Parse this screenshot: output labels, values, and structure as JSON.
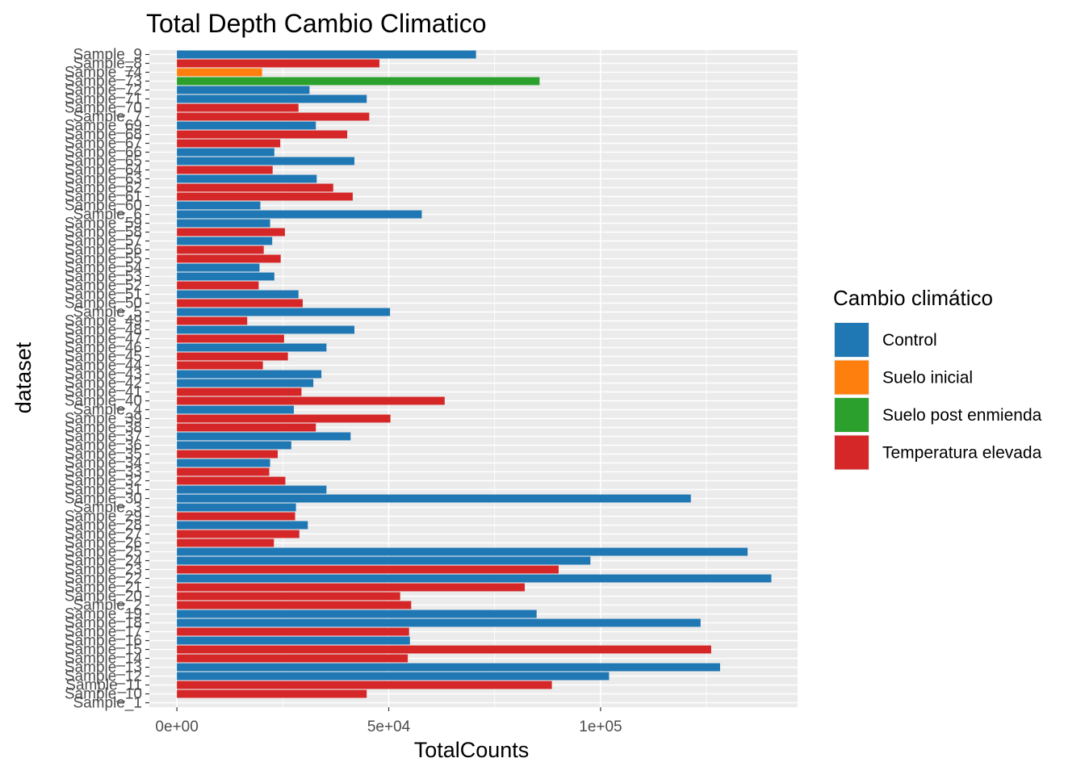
{
  "chart_data": {
    "type": "bar",
    "orientation": "horizontal",
    "title": "Total Depth Cambio Climatico",
    "xlabel": "TotalCounts",
    "ylabel": "dataset",
    "xlim": [
      -6500,
      146500
    ],
    "x_ticks": [
      0,
      50000,
      100000
    ],
    "x_tick_labels": [
      "0e+00",
      "5e+04",
      "1e+05"
    ],
    "grid": true,
    "legend": {
      "title": "Cambio climático",
      "position": "right",
      "entries": [
        {
          "name": "Control",
          "color": "#1f77b4"
        },
        {
          "name": "Suelo inicial",
          "color": "#ff7f0e"
        },
        {
          "name": "Suelo post enmienda",
          "color": "#2ca02c"
        },
        {
          "name": "Temperatura elevada",
          "color": "#d62728"
        }
      ]
    },
    "bars": [
      {
        "label": "Sample_9",
        "value": 70600,
        "group": "Control"
      },
      {
        "label": "Sample_8",
        "value": 47800,
        "group": "Temperatura elevada"
      },
      {
        "label": "Sample_74",
        "value": 20100,
        "group": "Suelo inicial"
      },
      {
        "label": "Sample_73",
        "value": 85600,
        "group": "Suelo post enmienda"
      },
      {
        "label": "Sample_72",
        "value": 31300,
        "group": "Control"
      },
      {
        "label": "Sample_71",
        "value": 44800,
        "group": "Control"
      },
      {
        "label": "Sample_70",
        "value": 28700,
        "group": "Temperatura elevada"
      },
      {
        "label": "Sample_7",
        "value": 45400,
        "group": "Temperatura elevada"
      },
      {
        "label": "Sample_69",
        "value": 32800,
        "group": "Control"
      },
      {
        "label": "Sample_68",
        "value": 40200,
        "group": "Temperatura elevada"
      },
      {
        "label": "Sample_67",
        "value": 24400,
        "group": "Temperatura elevada"
      },
      {
        "label": "Sample_66",
        "value": 23000,
        "group": "Control"
      },
      {
        "label": "Sample_65",
        "value": 41900,
        "group": "Control"
      },
      {
        "label": "Sample_64",
        "value": 22600,
        "group": "Temperatura elevada"
      },
      {
        "label": "Sample_63",
        "value": 33000,
        "group": "Control"
      },
      {
        "label": "Sample_62",
        "value": 36900,
        "group": "Temperatura elevada"
      },
      {
        "label": "Sample_61",
        "value": 41500,
        "group": "Temperatura elevada"
      },
      {
        "label": "Sample_60",
        "value": 19700,
        "group": "Control"
      },
      {
        "label": "Sample_6",
        "value": 57800,
        "group": "Control"
      },
      {
        "label": "Sample_59",
        "value": 22000,
        "group": "Control"
      },
      {
        "label": "Sample_58",
        "value": 25500,
        "group": "Temperatura elevada"
      },
      {
        "label": "Sample_57",
        "value": 22500,
        "group": "Control"
      },
      {
        "label": "Sample_56",
        "value": 20500,
        "group": "Temperatura elevada"
      },
      {
        "label": "Sample_55",
        "value": 24500,
        "group": "Temperatura elevada"
      },
      {
        "label": "Sample_54",
        "value": 19500,
        "group": "Control"
      },
      {
        "label": "Sample_53",
        "value": 23000,
        "group": "Control"
      },
      {
        "label": "Sample_52",
        "value": 19300,
        "group": "Temperatura elevada"
      },
      {
        "label": "Sample_51",
        "value": 28700,
        "group": "Control"
      },
      {
        "label": "Sample_50",
        "value": 29700,
        "group": "Temperatura elevada"
      },
      {
        "label": "Sample_5",
        "value": 50300,
        "group": "Control"
      },
      {
        "label": "Sample_49",
        "value": 16600,
        "group": "Temperatura elevada"
      },
      {
        "label": "Sample_48",
        "value": 41900,
        "group": "Control"
      },
      {
        "label": "Sample_47",
        "value": 25300,
        "group": "Temperatura elevada"
      },
      {
        "label": "Sample_46",
        "value": 35300,
        "group": "Control"
      },
      {
        "label": "Sample_45",
        "value": 26200,
        "group": "Temperatura elevada"
      },
      {
        "label": "Sample_44",
        "value": 20300,
        "group": "Temperatura elevada"
      },
      {
        "label": "Sample_43",
        "value": 34100,
        "group": "Control"
      },
      {
        "label": "Sample_42",
        "value": 32200,
        "group": "Control"
      },
      {
        "label": "Sample_41",
        "value": 29400,
        "group": "Temperatura elevada"
      },
      {
        "label": "Sample_40",
        "value": 63200,
        "group": "Temperatura elevada"
      },
      {
        "label": "Sample_4",
        "value": 27600,
        "group": "Control"
      },
      {
        "label": "Sample_39",
        "value": 50400,
        "group": "Temperatura elevada"
      },
      {
        "label": "Sample_38",
        "value": 32800,
        "group": "Temperatura elevada"
      },
      {
        "label": "Sample_37",
        "value": 41000,
        "group": "Control"
      },
      {
        "label": "Sample_36",
        "value": 27000,
        "group": "Control"
      },
      {
        "label": "Sample_35",
        "value": 23800,
        "group": "Temperatura elevada"
      },
      {
        "label": "Sample_34",
        "value": 22000,
        "group": "Control"
      },
      {
        "label": "Sample_33",
        "value": 21800,
        "group": "Temperatura elevada"
      },
      {
        "label": "Sample_32",
        "value": 25600,
        "group": "Temperatura elevada"
      },
      {
        "label": "Sample_31",
        "value": 35300,
        "group": "Control"
      },
      {
        "label": "Sample_30",
        "value": 121300,
        "group": "Control"
      },
      {
        "label": "Sample_3",
        "value": 28100,
        "group": "Control"
      },
      {
        "label": "Sample_29",
        "value": 27900,
        "group": "Temperatura elevada"
      },
      {
        "label": "Sample_28",
        "value": 30900,
        "group": "Control"
      },
      {
        "label": "Sample_27",
        "value": 28900,
        "group": "Temperatura elevada"
      },
      {
        "label": "Sample_26",
        "value": 22900,
        "group": "Temperatura elevada"
      },
      {
        "label": "Sample_25",
        "value": 134700,
        "group": "Control"
      },
      {
        "label": "Sample_24",
        "value": 97600,
        "group": "Control"
      },
      {
        "label": "Sample_23",
        "value": 90100,
        "group": "Temperatura elevada"
      },
      {
        "label": "Sample_22",
        "value": 140300,
        "group": "Control"
      },
      {
        "label": "Sample_21",
        "value": 82100,
        "group": "Temperatura elevada"
      },
      {
        "label": "Sample_20",
        "value": 52700,
        "group": "Temperatura elevada"
      },
      {
        "label": "Sample_2",
        "value": 55300,
        "group": "Temperatura elevada"
      },
      {
        "label": "Sample_19",
        "value": 84900,
        "group": "Control"
      },
      {
        "label": "Sample_18",
        "value": 123600,
        "group": "Control"
      },
      {
        "label": "Sample_17",
        "value": 54800,
        "group": "Temperatura elevada"
      },
      {
        "label": "Sample_16",
        "value": 55000,
        "group": "Control"
      },
      {
        "label": "Sample_15",
        "value": 126100,
        "group": "Temperatura elevada"
      },
      {
        "label": "Sample_14",
        "value": 54500,
        "group": "Temperatura elevada"
      },
      {
        "label": "Sample_13",
        "value": 128200,
        "group": "Control"
      },
      {
        "label": "Sample_12",
        "value": 102000,
        "group": "Control"
      },
      {
        "label": "Sample_11",
        "value": 88500,
        "group": "Temperatura elevada"
      },
      {
        "label": "Sample_10",
        "value": 44800,
        "group": "Temperatura elevada"
      },
      {
        "label": "Sample_1",
        "value": 0,
        "group": "Control"
      }
    ]
  }
}
